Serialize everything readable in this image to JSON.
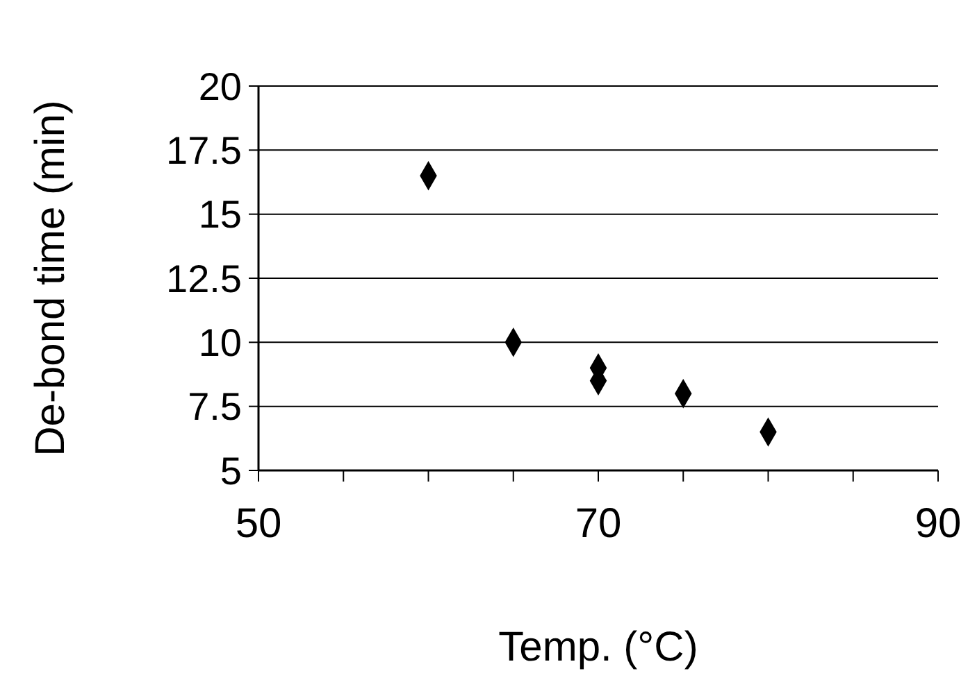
{
  "chart_data": {
    "type": "scatter",
    "xlabel": "Temp. (°C)",
    "ylabel": "De-bond time (min)",
    "x": [
      60,
      65,
      70,
      70,
      75,
      80
    ],
    "values": [
      16.5,
      10,
      9,
      8.5,
      8,
      6.5
    ],
    "color": "#000000",
    "marker": "diamond",
    "xlim": [
      50,
      90
    ],
    "xticks": [
      50,
      {
        "value": 55,
        "label": null
      },
      {
        "value": 60,
        "label": null
      },
      {
        "value": 65,
        "label": null
      },
      70,
      {
        "value": 75,
        "label": null
      },
      {
        "value": 80,
        "label": null
      },
      {
        "value": 85,
        "label": null
      },
      90
    ],
    "ylim": [
      5,
      20
    ],
    "yticks": [
      5,
      7.5,
      10,
      12.5,
      15,
      17.5,
      20
    ],
    "grid": "y"
  }
}
